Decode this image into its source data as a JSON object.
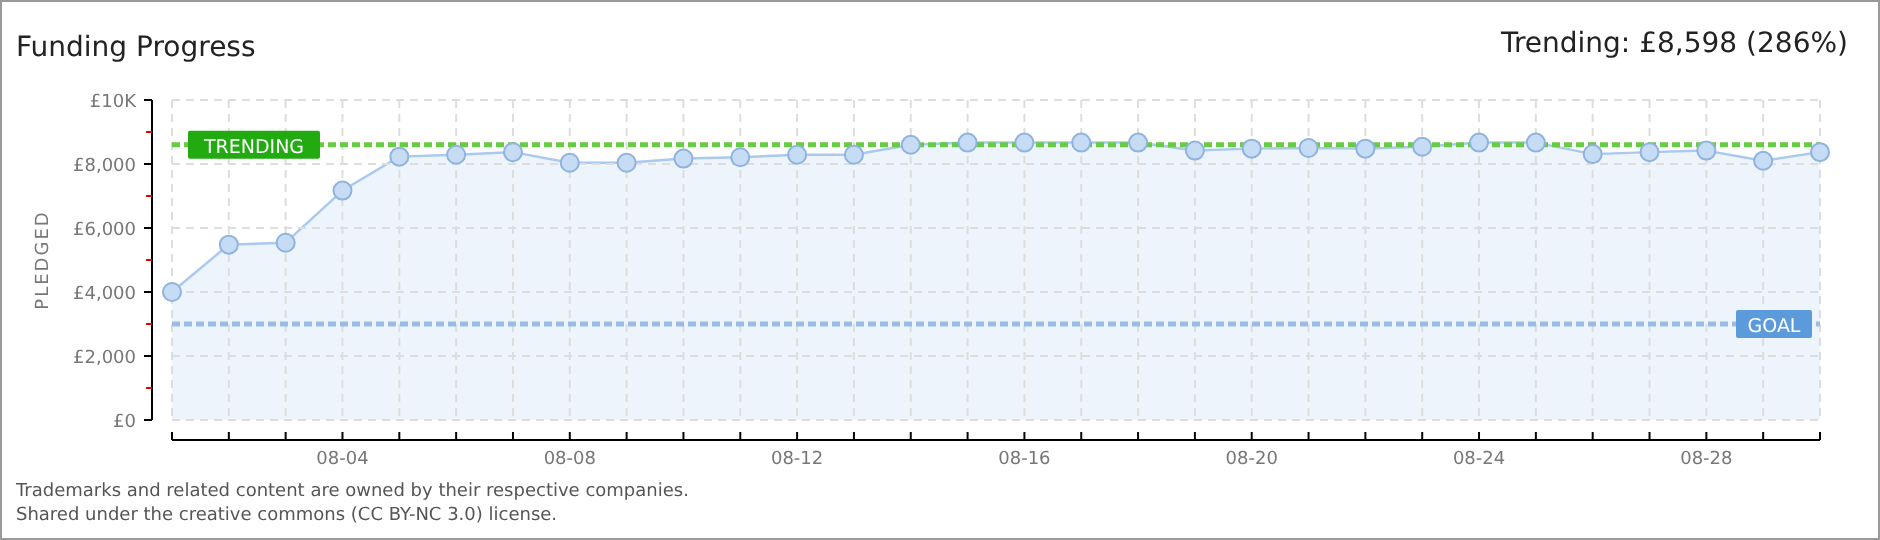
{
  "chart_data": {
    "type": "area",
    "title": "Funding Progress",
    "subtitle": "Trending: £8,598 (286%)",
    "ylabel": "PLEDGED",
    "categories": [
      null,
      null,
      null,
      "08-04",
      null,
      null,
      null,
      "08-08",
      null,
      null,
      null,
      "08-12",
      null,
      null,
      null,
      "08-16",
      null,
      null,
      null,
      "08-20",
      null,
      null,
      null,
      "08-24",
      null,
      null,
      null,
      "08-28",
      null,
      null
    ],
    "series": [
      {
        "color": "#a9c9ef",
        "values": [
          4000,
          5480,
          5540,
          7170,
          8230,
          8290,
          8370,
          8040,
          8040,
          8170,
          8210,
          8290,
          8290,
          8600,
          8670,
          8670,
          8670,
          8670,
          8420,
          8480,
          8500,
          8480,
          8540,
          8670,
          8670,
          8310,
          8370,
          8420,
          8100,
          8370
        ]
      }
    ],
    "ylim": [
      0,
      10000
    ],
    "yticks": [
      {
        "value": 0,
        "label": "£0"
      },
      {
        "value": 1000,
        "label": null
      },
      {
        "value": 2000,
        "label": "£2,000"
      },
      {
        "value": 3000,
        "label": null
      },
      {
        "value": 4000,
        "label": "£4,000"
      },
      {
        "value": 5000,
        "label": null
      },
      {
        "value": 6000,
        "label": "£6,000"
      },
      {
        "value": 7000,
        "label": null
      },
      {
        "value": 8000,
        "label": "£8,000"
      },
      {
        "value": 9000,
        "label": null
      },
      {
        "value": 10000,
        "label": "£10K"
      }
    ],
    "ref_lines": [
      {
        "axis": "y",
        "value": 8598,
        "label": "TRENDING",
        "color": "#66cc44",
        "line_style": "dashed"
      },
      {
        "axis": "y",
        "value": 3000,
        "label": "GOAL",
        "color": "#99bbe6",
        "line_style": "dashed"
      }
    ],
    "grid": true,
    "marker": "circle",
    "annotations": [
      "Trademarks and related content are owned by their respective companies.",
      "Shared under the creative commons (CC BY-NC 3.0) license."
    ]
  }
}
